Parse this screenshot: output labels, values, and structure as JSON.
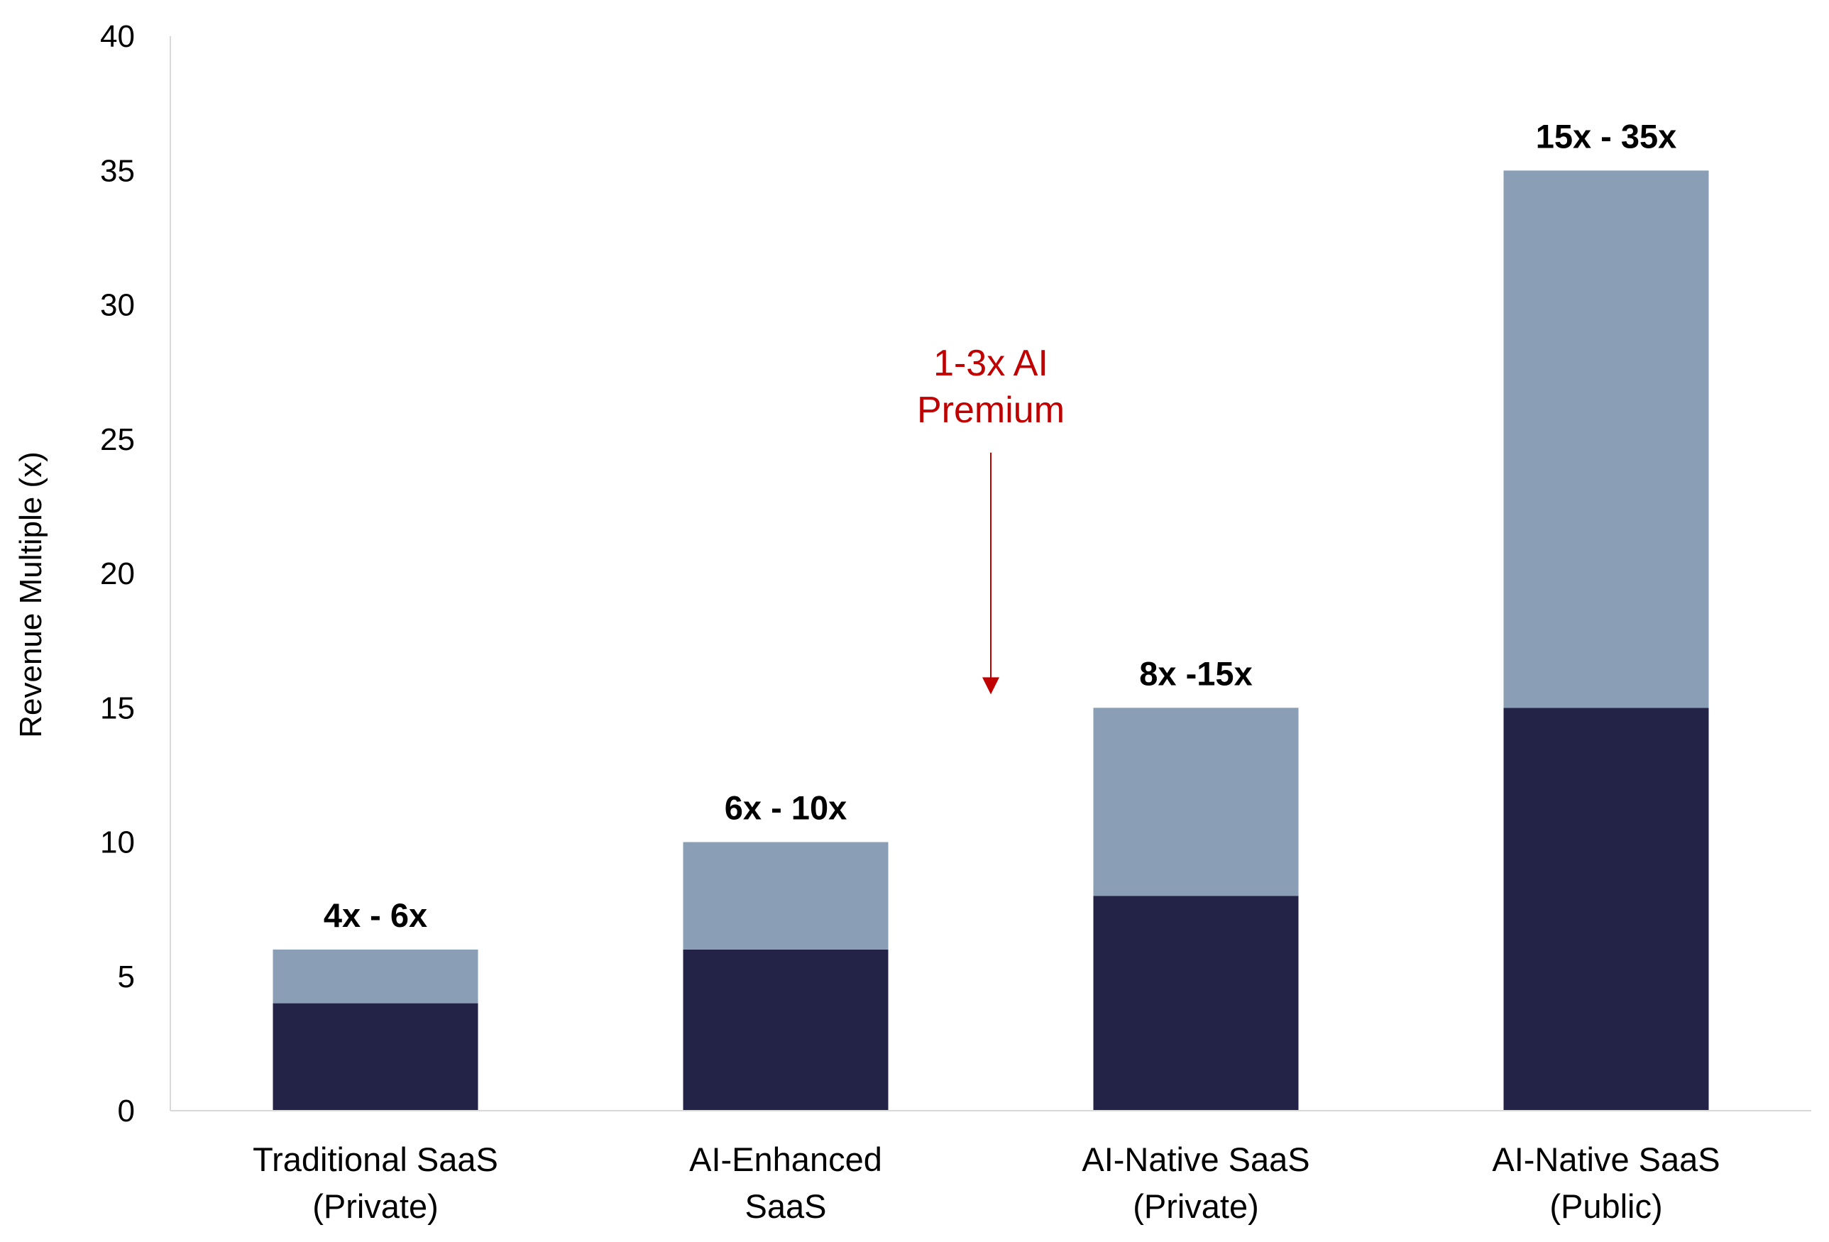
{
  "chart_data": {
    "type": "bar",
    "stacked": true,
    "categories": [
      [
        "Traditional SaaS",
        "(Private)"
      ],
      [
        "AI-Enhanced",
        "SaaS"
      ],
      [
        "AI-Native SaaS",
        "(Private)"
      ],
      [
        "AI-Native SaaS",
        "(Public)"
      ]
    ],
    "series": [
      {
        "values": [
          4,
          6,
          8,
          15
        ],
        "color": "#232347"
      },
      {
        "values": [
          2,
          4,
          7,
          20
        ],
        "color": "#8a9fb6"
      }
    ],
    "data_labels": [
      "4x - 6x",
      "6x - 10x",
      "8x -15x",
      "15x - 35x"
    ],
    "title": "",
    "xlabel": "",
    "ylabel": "Revenue Multiple (x)",
    "ylim": [
      0,
      40
    ],
    "yticks": [
      0,
      5,
      10,
      15,
      20,
      25,
      30,
      35,
      40
    ],
    "grid": false,
    "legend": "none",
    "annotation": {
      "lines": [
        "1-3x AI",
        "Premium"
      ],
      "color": "#c00000",
      "arrow_from_y": 24.5,
      "arrow_to_y": 15.5
    },
    "axis_color": "#d9d9d9"
  }
}
